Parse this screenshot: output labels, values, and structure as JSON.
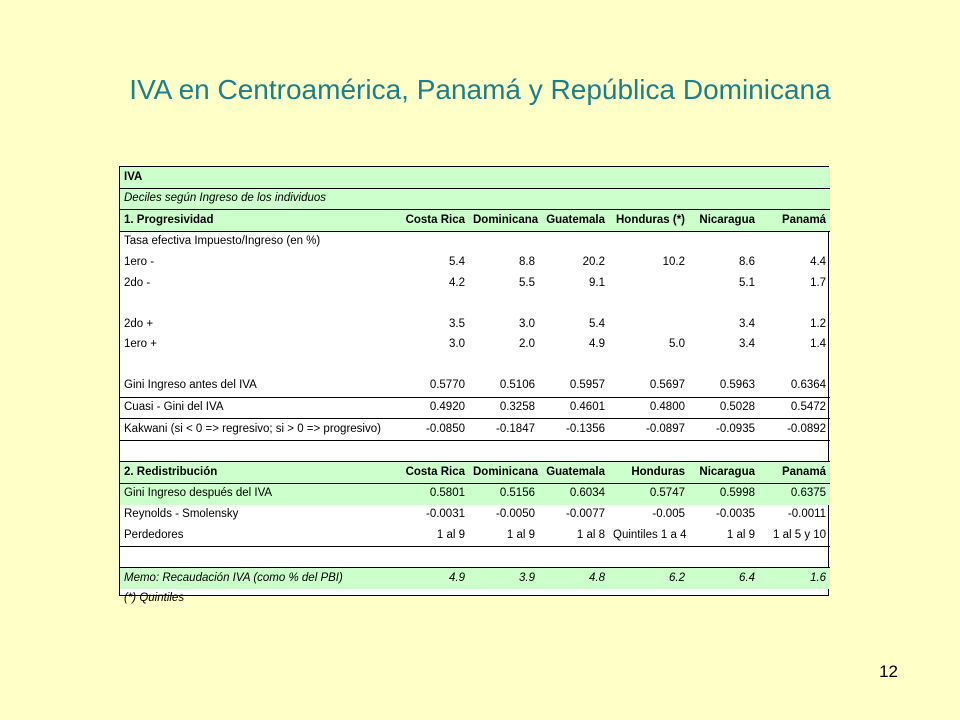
{
  "slide": {
    "title": "IVA en Centroamérica, Panamá y República Dominicana",
    "page_number": "12"
  },
  "table": {
    "section_title": "IVA",
    "subtitle": "Deciles según Ingreso de los individuos",
    "section1": {
      "heading": "1. Progresividad",
      "columns": [
        "Costa Rica",
        "Dominicana",
        "Guatemala",
        "Honduras (*)",
        "Nicaragua",
        "Panamá"
      ],
      "rate_label": "Tasa efectiva Impuesto/Ingreso (en %)",
      "rows": [
        {
          "label": "1ero -",
          "values": [
            "5.4",
            "8.8",
            "20.2",
            "10.2",
            "8.6",
            "4.4"
          ]
        },
        {
          "label": "2do -",
          "values": [
            "4.2",
            "5.5",
            "9.1",
            "",
            "5.1",
            "1.7"
          ]
        },
        {
          "label": "2do +",
          "values": [
            "3.5",
            "3.0",
            "5.4",
            "",
            "3.4",
            "1.2"
          ]
        },
        {
          "label": "1ero +",
          "values": [
            "3.0",
            "2.0",
            "4.9",
            "5.0",
            "3.4",
            "1.4"
          ]
        }
      ],
      "index_rows": [
        {
          "label": "Gini Ingreso antes del IVA",
          "values": [
            "0.5770",
            "0.5106",
            "0.5957",
            "0.5697",
            "0.5963",
            "0.6364"
          ]
        },
        {
          "label": "Cuasi - Gini del IVA",
          "values": [
            "0.4920",
            "0.3258",
            "0.4601",
            "0.4800",
            "0.5028",
            "0.5472"
          ]
        },
        {
          "label": "Kakwani (si < 0 => regresivo; si > 0 => progresivo)",
          "values": [
            "-0.0850",
            "-0.1847",
            "-0.1356",
            "-0.0897",
            "-0.0935",
            "-0.0892"
          ]
        }
      ]
    },
    "section2": {
      "heading": "2. Redistribución",
      "columns": [
        "Costa Rica",
        "Dominicana",
        "Guatemala",
        "Honduras",
        "Nicaragua",
        "Panamá"
      ],
      "rows": [
        {
          "label": "Gini Ingreso después del IVA",
          "values": [
            "0.5801",
            "0.5156",
            "0.6034",
            "0.5747",
            "0.5998",
            "0.6375"
          ]
        },
        {
          "label": "Reynolds - Smolensky",
          "values": [
            "-0.0031",
            "-0.0050",
            "-0.0077",
            "-0.005",
            "-0.0035",
            "-0.0011"
          ]
        },
        {
          "label": "Perdedores",
          "values": [
            "1 al 9",
            "1 al 9",
            "1 al 8",
            "Quintiles 1 a 4",
            "1 al 9",
            "1 al 5 y 10"
          ]
        }
      ]
    },
    "memo": {
      "label": "Memo: Recaudación IVA (como % del PBI)",
      "values": [
        "4.9",
        "3.9",
        "4.8",
        "6.2",
        "6.4",
        "1.6"
      ],
      "footnote": "(*) Quintiles"
    }
  }
}
